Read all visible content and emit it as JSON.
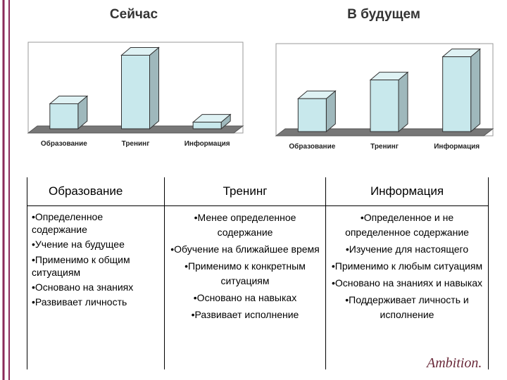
{
  "chart_data": [
    {
      "type": "bar3d",
      "title": "Сейчас",
      "categories": [
        "Образование",
        "Тренинг",
        "Информация"
      ],
      "values": [
        34,
        100,
        9
      ],
      "color": "#c8e8ec",
      "ylim": [
        0,
        110
      ]
    },
    {
      "type": "bar3d",
      "title": "В будущем",
      "categories": [
        "Образование",
        "Тренинг",
        "Информация"
      ],
      "values": [
        44,
        69,
        100
      ],
      "color": "#c8e8ec",
      "ylim": [
        0,
        110
      ]
    }
  ],
  "columns": [
    {
      "header": "Образование",
      "items": [
        "•Определенное содержание",
        "•Учение на будущее",
        "•Применимо к общим ситуациям",
        "•Основано на знаниях",
        "•Развивает личность"
      ]
    },
    {
      "header": "Тренинг",
      "items": [
        "•Менее определенное содержание",
        "•Обучение на ближайшее время",
        "•Применимо к конкретным ситуациям",
        "•Основано на навыках",
        "•Развивает исполнение"
      ]
    },
    {
      "header": "Информация",
      "items": [
        "•Определенное и не определенное содержание",
        "•Изучение для настоящего",
        "•Применимо к любым ситуациям",
        "•Основано на знаниях и навыках",
        "•Поддерживает личность и исполнение"
      ]
    }
  ],
  "logo": "Ambition."
}
